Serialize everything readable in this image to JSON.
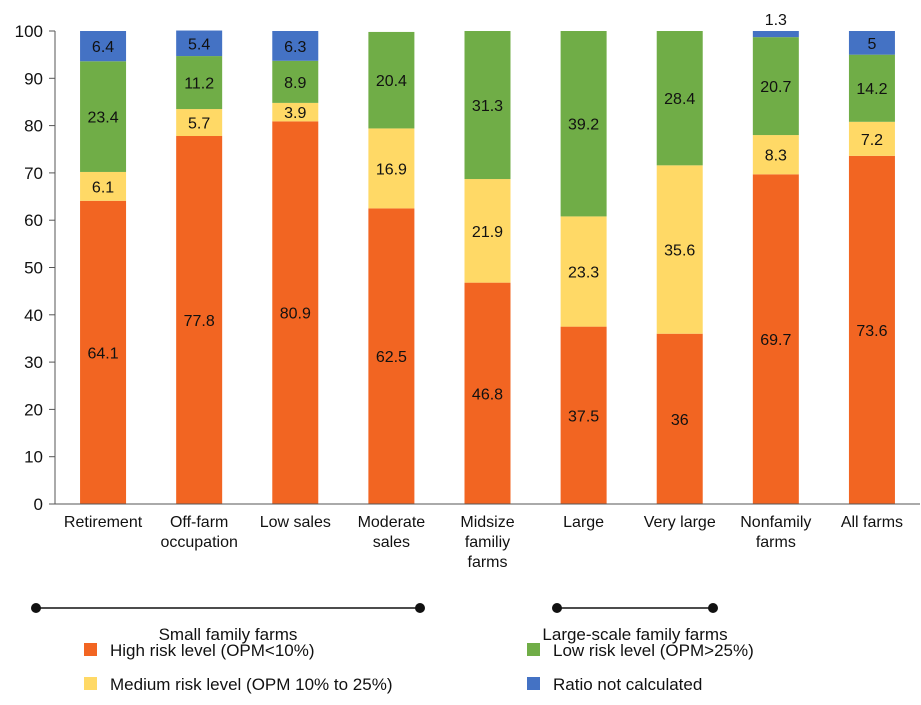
{
  "chart_data": {
    "type": "bar",
    "stacked": true,
    "ylim": [
      0,
      100
    ],
    "yticks": [
      0,
      10,
      20,
      30,
      40,
      50,
      60,
      70,
      80,
      90,
      100
    ],
    "grid": false,
    "categories": [
      [
        "Retirement"
      ],
      [
        "Off-farm",
        "occupation"
      ],
      [
        "Low sales"
      ],
      [
        "Moderate",
        "sales"
      ],
      [
        "Midsize",
        "familiy",
        "farms"
      ],
      [
        "Large"
      ],
      [
        "Very large"
      ],
      [
        "Nonfamily",
        "farms"
      ],
      [
        "All farms"
      ]
    ],
    "series": [
      {
        "name": "High risk level (OPM<10%)",
        "color": "#f26522",
        "values": [
          64.1,
          77.8,
          80.9,
          62.5,
          46.8,
          37.5,
          36,
          69.7,
          73.6
        ]
      },
      {
        "name": "Medium risk level (OPM 10% to 25%)",
        "color": "#ffd966",
        "values": [
          6.1,
          5.7,
          3.9,
          16.9,
          21.9,
          23.3,
          35.6,
          8.3,
          7.2
        ]
      },
      {
        "name": "Low risk level (OPM>25%)",
        "color": "#70ad47",
        "values": [
          23.4,
          11.2,
          8.9,
          20.4,
          31.3,
          39.2,
          28.4,
          20.7,
          14.2
        ]
      },
      {
        "name": "Ratio not calculated",
        "color": "#4472c4",
        "values": [
          6.4,
          5.4,
          6.3,
          null,
          null,
          null,
          null,
          1.3,
          5
        ]
      }
    ],
    "groups": [
      {
        "label": "Small family farms",
        "from": 0,
        "to": 3
      },
      {
        "label": "Large-scale family farms",
        "from": 5,
        "to": 6
      }
    ],
    "legend_position": "bottom"
  }
}
